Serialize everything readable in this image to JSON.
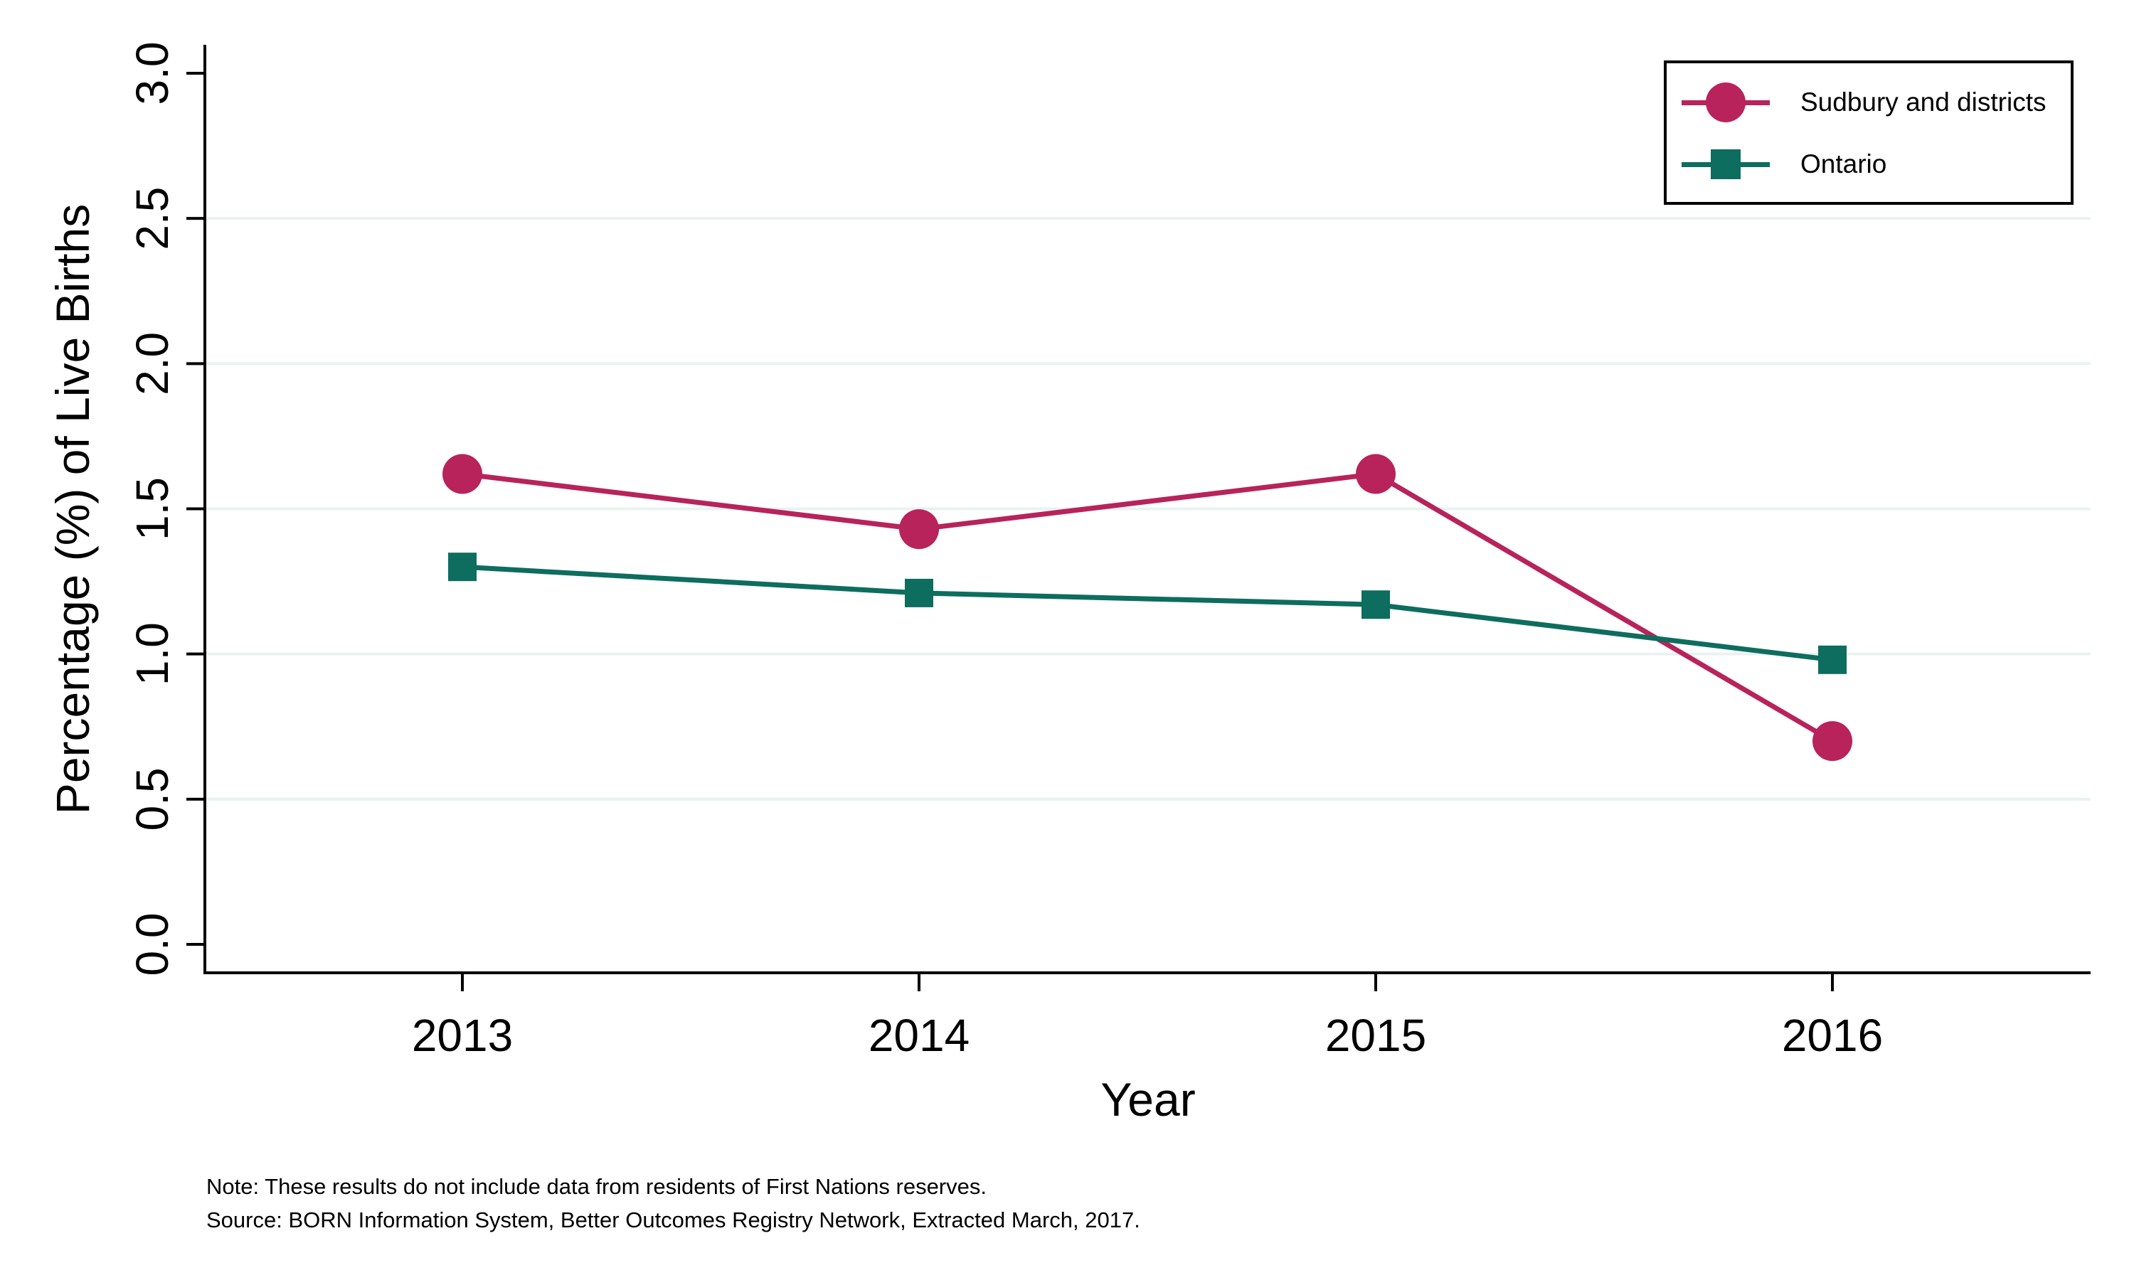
{
  "axes": {
    "y_title": "Percentage (%) of Live Births",
    "x_title": "Year",
    "y_ticks": [
      "0.0",
      "0.5",
      "1.0",
      "1.5",
      "2.0",
      "2.5",
      "3.0"
    ],
    "x_ticks": [
      "2013",
      "2014",
      "2015",
      "2016"
    ]
  },
  "notes": {
    "line1": "Note: These results do not include data from residents of First Nations reserves.",
    "line2": "Source: BORN Information System, Better Outcomes Registry Network, Extracted March, 2017."
  },
  "colors": {
    "sudbury": "#b7235a",
    "ontario": "#0d6d5e",
    "gridline": "#e9f2f1",
    "axis": "#000000",
    "background": "#ffffff"
  },
  "chart_data": {
    "type": "line",
    "categories": [
      2013,
      2014,
      2015,
      2016
    ],
    "series": [
      {
        "name": "Sudbury and districts",
        "marker": "circle",
        "color": "#b7235a",
        "values": [
          1.62,
          1.43,
          1.62,
          0.7
        ]
      },
      {
        "name": "Ontario",
        "marker": "square",
        "color": "#0d6d5e",
        "values": [
          1.3,
          1.21,
          1.17,
          0.98
        ]
      }
    ],
    "title": "",
    "xlabel": "Year",
    "ylabel": "Percentage (%) of Live Births",
    "ylim": [
      0,
      3
    ],
    "y_tick_step": 0.5,
    "gridlines_at": [
      0.5,
      1.0,
      1.5,
      2.0,
      2.5
    ],
    "grid_on": true,
    "legend_position": "top-right"
  }
}
